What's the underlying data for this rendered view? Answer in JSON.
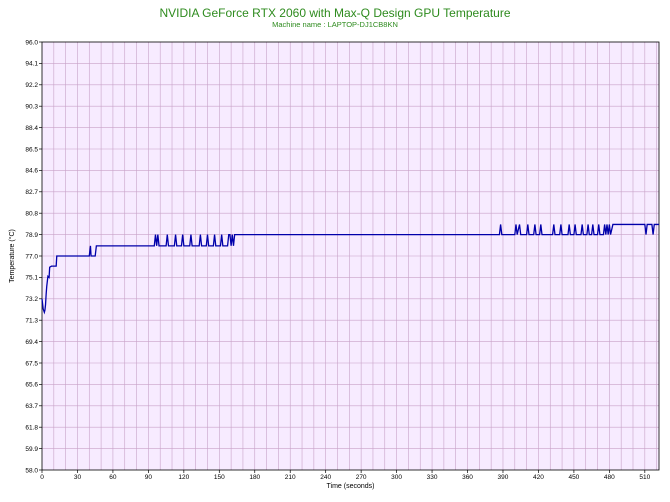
{
  "chart_data": {
    "type": "line",
    "title": "NVIDIA GeForce RTX 2060 with Max-Q Design GPU Temperature",
    "subtitle": "Machine name : LAPTOP-DJ1CB8KN",
    "xlabel": "Time (seconds)",
    "ylabel": "Temperature (°C)",
    "xlim": [
      0,
      522
    ],
    "ylim": [
      58.0,
      96.0
    ],
    "x_ticks": [
      0,
      30,
      60,
      90,
      120,
      150,
      180,
      210,
      240,
      270,
      300,
      330,
      360,
      390,
      420,
      450,
      480,
      510
    ],
    "y_ticks": [
      "58.0",
      "59.9",
      "61.8",
      "63.7",
      "65.6",
      "67.5",
      "69.4",
      "71.3",
      "73.2",
      "75.1",
      "77.0",
      "78.9",
      "80.8",
      "82.7",
      "84.6",
      "86.5",
      "88.4",
      "90.3",
      "92.2",
      "94.1",
      "96.0"
    ],
    "grid": true,
    "colors": {
      "background": "#f7ebff",
      "grid": "#c8a2c8",
      "line": "#0000aa",
      "title": "#2e8b1e"
    },
    "series": [
      {
        "points": [
          [
            0,
            73.2
          ],
          [
            1,
            72.3
          ],
          [
            2,
            72.0
          ],
          [
            2.5,
            72.2
          ],
          [
            3,
            72.7
          ],
          [
            3.5,
            73.6
          ],
          [
            4,
            74.3
          ],
          [
            5,
            75.2
          ],
          [
            6,
            75.1
          ],
          [
            6.5,
            76.0
          ],
          [
            8,
            76.1
          ],
          [
            12,
            76.1
          ],
          [
            12.5,
            77.0
          ],
          [
            40,
            77.0
          ],
          [
            41,
            77.9
          ],
          [
            41.5,
            77.0
          ],
          [
            45,
            77.0
          ],
          [
            46,
            77.9
          ],
          [
            95,
            77.9
          ],
          [
            96,
            78.9
          ],
          [
            97,
            77.9
          ],
          [
            98,
            78.9
          ],
          [
            99,
            77.9
          ],
          [
            105,
            77.9
          ],
          [
            106,
            78.9
          ],
          [
            107,
            77.9
          ],
          [
            112,
            77.9
          ],
          [
            113,
            78.9
          ],
          [
            114,
            77.9
          ],
          [
            118,
            77.9
          ],
          [
            119,
            78.9
          ],
          [
            120,
            77.9
          ],
          [
            125,
            77.9
          ],
          [
            126,
            78.9
          ],
          [
            127,
            77.9
          ],
          [
            133,
            77.9
          ],
          [
            134,
            78.9
          ],
          [
            135,
            77.9
          ],
          [
            139,
            77.9
          ],
          [
            140,
            78.9
          ],
          [
            141,
            77.9
          ],
          [
            145,
            77.9
          ],
          [
            146,
            78.9
          ],
          [
            147,
            77.9
          ],
          [
            151,
            77.9
          ],
          [
            152,
            78.9
          ],
          [
            153,
            77.9
          ],
          [
            157,
            77.9
          ],
          [
            158,
            78.9
          ],
          [
            159,
            78.9
          ],
          [
            160,
            77.9
          ],
          [
            161,
            78.9
          ],
          [
            162,
            77.9
          ],
          [
            163,
            78.9
          ],
          [
            163.5,
            78.9
          ],
          [
            164,
            78.9
          ],
          [
            387,
            78.9
          ],
          [
            388,
            79.8
          ],
          [
            389,
            78.9
          ],
          [
            400,
            78.9
          ],
          [
            401,
            79.8
          ],
          [
            402,
            78.9
          ],
          [
            404,
            79.8
          ],
          [
            405,
            78.9
          ],
          [
            410,
            78.9
          ],
          [
            411,
            79.8
          ],
          [
            412,
            78.9
          ],
          [
            416,
            78.9
          ],
          [
            417,
            79.8
          ],
          [
            418,
            78.9
          ],
          [
            421,
            78.9
          ],
          [
            422,
            79.8
          ],
          [
            423,
            78.9
          ],
          [
            432,
            78.9
          ],
          [
            433,
            79.8
          ],
          [
            434,
            78.9
          ],
          [
            438,
            78.9
          ],
          [
            439,
            79.8
          ],
          [
            440,
            78.9
          ],
          [
            445,
            78.9
          ],
          [
            446,
            79.8
          ],
          [
            447,
            78.9
          ],
          [
            450,
            78.9
          ],
          [
            451,
            79.8
          ],
          [
            452,
            78.9
          ],
          [
            456,
            78.9
          ],
          [
            457,
            79.8
          ],
          [
            458,
            78.9
          ],
          [
            461,
            78.9
          ],
          [
            462,
            79.8
          ],
          [
            463,
            78.9
          ],
          [
            465,
            78.9
          ],
          [
            466,
            79.8
          ],
          [
            467,
            78.9
          ],
          [
            470,
            78.9
          ],
          [
            471,
            79.8
          ],
          [
            472,
            78.9
          ],
          [
            475,
            78.9
          ],
          [
            476,
            79.8
          ],
          [
            477,
            78.9
          ],
          [
            478,
            79.8
          ],
          [
            479,
            78.9
          ],
          [
            480,
            79.8
          ],
          [
            481,
            78.9
          ],
          [
            483,
            79.8
          ],
          [
            510,
            79.8
          ],
          [
            511,
            78.9
          ],
          [
            512,
            79.8
          ],
          [
            516,
            79.8
          ],
          [
            517,
            78.9
          ],
          [
            518,
            79.8
          ],
          [
            522,
            79.8
          ]
        ]
      }
    ]
  }
}
